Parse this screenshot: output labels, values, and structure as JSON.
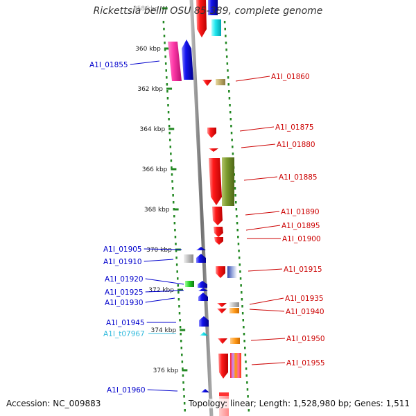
{
  "title": "Rickettsia bellii OSU 85-389, complete genome",
  "accession": "Accession: NC_009883",
  "summary": "Topology: linear; Length: 1,528,980 bp; Genes: 1,511",
  "scale_ticks": [
    {
      "label": "358 kbp",
      "pos_kbp": 358
    },
    {
      "label": "360 kbp",
      "pos_kbp": 360
    },
    {
      "label": "362 kbp",
      "pos_kbp": 362
    },
    {
      "label": "364 kbp",
      "pos_kbp": 364
    },
    {
      "label": "366 kbp",
      "pos_kbp": 366
    },
    {
      "label": "368 kbp",
      "pos_kbp": 368
    },
    {
      "label": "370 kbp",
      "pos_kbp": 370
    },
    {
      "label": "372 kbp",
      "pos_kbp": 372
    },
    {
      "label": "374 kbp",
      "pos_kbp": 374
    },
    {
      "label": "376 kbp",
      "pos_kbp": 376
    }
  ],
  "gene_labels": [
    {
      "text": "A1I_01855",
      "strand": "minus"
    },
    {
      "text": "A1I_01860",
      "strand": "plus"
    },
    {
      "text": "A1I_01875",
      "strand": "plus"
    },
    {
      "text": "A1I_01880",
      "strand": "plus"
    },
    {
      "text": "A1I_01885",
      "strand": "plus"
    },
    {
      "text": "A1I_01890",
      "strand": "plus"
    },
    {
      "text": "A1I_01895",
      "strand": "plus"
    },
    {
      "text": "A1I_01900",
      "strand": "plus"
    },
    {
      "text": "A1I_01905",
      "strand": "minus"
    },
    {
      "text": "A1I_01910",
      "strand": "minus"
    },
    {
      "text": "A1I_01915",
      "strand": "plus"
    },
    {
      "text": "A1I_01920",
      "strand": "minus"
    },
    {
      "text": "A1I_01925",
      "strand": "minus"
    },
    {
      "text": "A1I_01930",
      "strand": "minus"
    },
    {
      "text": "A1I_01935",
      "strand": "plus"
    },
    {
      "text": "A1I_01940",
      "strand": "plus"
    },
    {
      "text": "A1I_01945",
      "strand": "minus"
    },
    {
      "text": "A1I_t07967",
      "strand": "minus-trna"
    },
    {
      "text": "A1I_01950",
      "strand": "plus"
    },
    {
      "text": "A1I_01955",
      "strand": "plus"
    },
    {
      "text": "A1I_01960",
      "strand": "minus"
    }
  ],
  "colors": {
    "plus_label": "#cc0000",
    "minus_label": "#0000cc",
    "trna_label": "#33bbdd",
    "plus_gene": "#ff1111",
    "minus_gene": "#1111ee",
    "backbone": "#888888",
    "tick_dots": "#228822"
  }
}
